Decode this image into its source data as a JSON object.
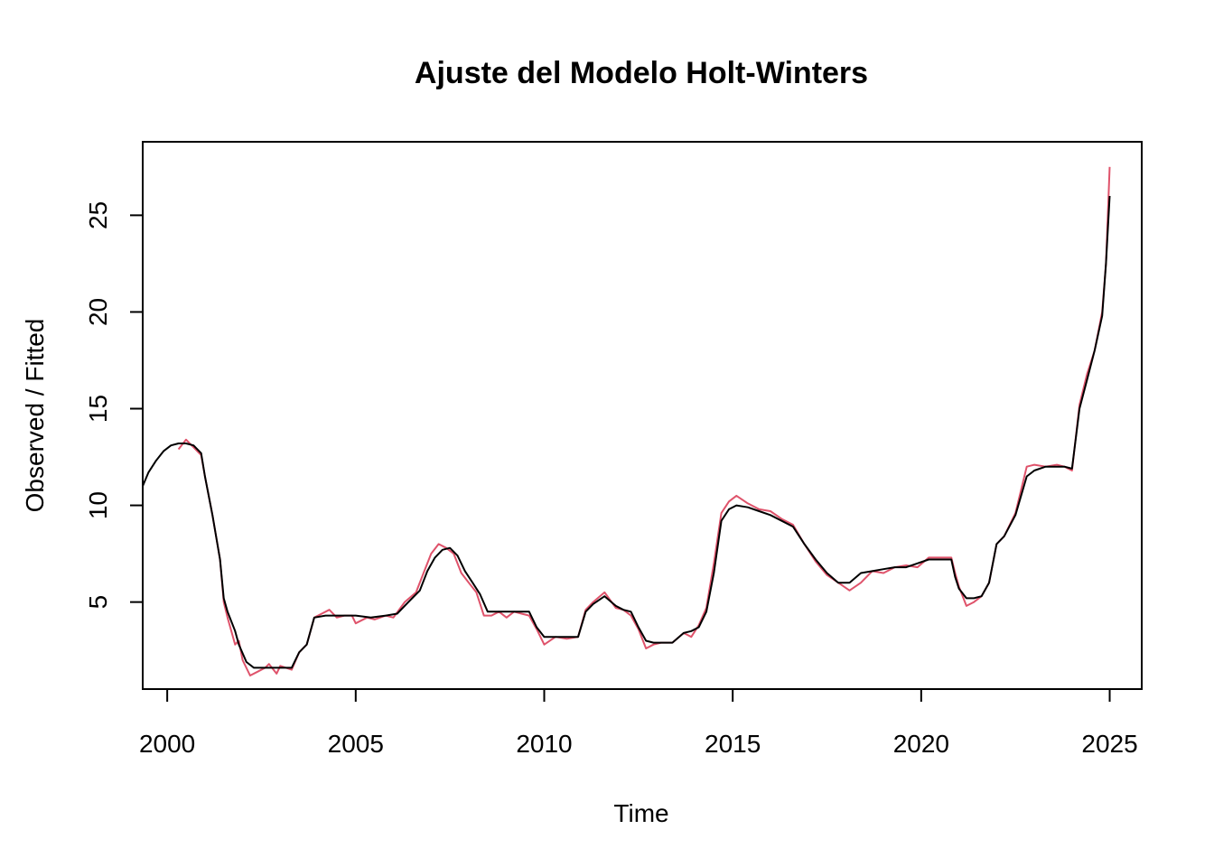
{
  "chart_data": {
    "type": "line",
    "title": "Ajuste del Modelo Holt-Winters",
    "xlabel": "Time",
    "ylabel": "Observed / Fitted",
    "xlim": [
      1999.35,
      2025.85
    ],
    "ylim": [
      0.5,
      28.8
    ],
    "x_ticks": [
      {
        "value": 2000,
        "label": "2000"
      },
      {
        "value": 2005,
        "label": "2005"
      },
      {
        "value": 2010,
        "label": "2010"
      },
      {
        "value": 2015,
        "label": "2015"
      },
      {
        "value": 2020,
        "label": "2020"
      },
      {
        "value": 2025,
        "label": "2025"
      }
    ],
    "y_ticks": [
      {
        "value": 5,
        "label": "5"
      },
      {
        "value": 10,
        "label": "10"
      },
      {
        "value": 15,
        "label": "15"
      },
      {
        "value": 20,
        "label": "20"
      },
      {
        "value": 25,
        "label": "25"
      }
    ],
    "grid": false,
    "legend": "none",
    "series": [
      {
        "color": "#DF536B",
        "x": [
          2000.3,
          2000.5,
          2000.7,
          2000.9,
          2001.0,
          2001.2,
          2001.4,
          2001.5,
          2001.6,
          2001.8,
          2001.9,
          2002.0,
          2002.2,
          2002.4,
          2002.6,
          2002.7,
          2002.9,
          2003.0,
          2003.3,
          2003.5,
          2003.7,
          2003.9,
          2004.1,
          2004.3,
          2004.5,
          2004.7,
          2004.9,
          2005.0,
          2005.3,
          2005.5,
          2005.8,
          2006.0,
          2006.3,
          2006.6,
          2006.8,
          2007.0,
          2007.2,
          2007.4,
          2007.6,
          2007.8,
          2008.0,
          2008.2,
          2008.4,
          2008.6,
          2008.8,
          2009.0,
          2009.2,
          2009.4,
          2009.6,
          2009.8,
          2010.0,
          2010.3,
          2010.6,
          2010.9,
          2011.1,
          2011.3,
          2011.6,
          2011.9,
          2012.1,
          2012.3,
          2012.5,
          2012.7,
          2012.9,
          2013.1,
          2013.4,
          2013.7,
          2013.9,
          2014.1,
          2014.3,
          2014.5,
          2014.7,
          2014.9,
          2015.1,
          2015.4,
          2015.7,
          2016.0,
          2016.3,
          2016.6,
          2016.9,
          2017.2,
          2017.5,
          2017.8,
          2018.1,
          2018.4,
          2018.7,
          2019.0,
          2019.3,
          2019.6,
          2019.9,
          2020.2,
          2020.5,
          2020.8,
          2020.9,
          2021.0,
          2021.2,
          2021.4,
          2021.6,
          2021.8,
          2022.0,
          2022.2,
          2022.5,
          2022.8,
          2023.0,
          2023.3,
          2023.6,
          2023.8,
          2024.0,
          2024.2,
          2024.4,
          2024.6,
          2024.8,
          2024.9,
          2025.0
        ],
        "y": [
          12.9,
          13.4,
          13.0,
          12.6,
          11.5,
          9.5,
          7.2,
          5.0,
          4.2,
          2.8,
          3.0,
          2.0,
          1.2,
          1.4,
          1.6,
          1.8,
          1.3,
          1.7,
          1.5,
          2.4,
          2.8,
          4.2,
          4.4,
          4.6,
          4.2,
          4.3,
          4.3,
          3.9,
          4.2,
          4.1,
          4.3,
          4.2,
          5.0,
          5.5,
          6.5,
          7.5,
          8.0,
          7.8,
          7.5,
          6.5,
          6.0,
          5.5,
          4.3,
          4.3,
          4.5,
          4.2,
          4.5,
          4.4,
          4.3,
          3.6,
          2.8,
          3.2,
          3.1,
          3.2,
          4.6,
          5.0,
          5.5,
          4.7,
          4.6,
          4.3,
          3.6,
          2.6,
          2.8,
          2.9,
          2.9,
          3.4,
          3.2,
          3.8,
          4.7,
          7.0,
          9.6,
          10.2,
          10.5,
          10.1,
          9.8,
          9.7,
          9.3,
          9.0,
          8.0,
          7.1,
          6.4,
          6.0,
          5.6,
          6.0,
          6.6,
          6.5,
          6.8,
          6.9,
          6.8,
          7.3,
          7.3,
          7.3,
          6.5,
          5.8,
          4.8,
          5.0,
          5.3,
          6.0,
          8.0,
          8.4,
          9.6,
          12.0,
          12.1,
          12.0,
          12.1,
          12.0,
          11.8,
          15.2,
          16.8,
          18.0,
          20.0,
          22.5,
          27.5
        ]
      },
      {
        "color": "#000000",
        "x": [
          1999.35,
          1999.5,
          1999.7,
          1999.9,
          2000.1,
          2000.3,
          2000.5,
          2000.7,
          2000.9,
          2001.0,
          2001.2,
          2001.4,
          2001.5,
          2001.6,
          2001.8,
          2001.9,
          2002.1,
          2002.3,
          2002.5,
          2002.7,
          2002.9,
          2003.1,
          2003.3,
          2003.5,
          2003.7,
          2003.9,
          2004.2,
          2004.6,
          2005.0,
          2005.4,
          2005.8,
          2006.1,
          2006.4,
          2006.7,
          2006.9,
          2007.1,
          2007.3,
          2007.5,
          2007.7,
          2007.9,
          2008.1,
          2008.3,
          2008.5,
          2008.8,
          2009.1,
          2009.4,
          2009.6,
          2009.8,
          2010.0,
          2010.3,
          2010.6,
          2010.9,
          2011.1,
          2011.3,
          2011.6,
          2011.9,
          2012.1,
          2012.3,
          2012.5,
          2012.7,
          2012.9,
          2013.1,
          2013.4,
          2013.7,
          2013.9,
          2014.1,
          2014.3,
          2014.5,
          2014.7,
          2014.9,
          2015.1,
          2015.4,
          2015.7,
          2016.0,
          2016.3,
          2016.6,
          2016.9,
          2017.2,
          2017.5,
          2017.8,
          2018.1,
          2018.4,
          2018.7,
          2019.0,
          2019.3,
          2019.6,
          2019.9,
          2020.2,
          2020.5,
          2020.8,
          2020.9,
          2021.0,
          2021.2,
          2021.4,
          2021.6,
          2021.8,
          2022.0,
          2022.2,
          2022.5,
          2022.8,
          2023.0,
          2023.3,
          2023.6,
          2023.8,
          2024.0,
          2024.2,
          2024.4,
          2024.6,
          2024.8,
          2024.9,
          2025.0
        ],
        "y": [
          11.0,
          11.7,
          12.3,
          12.8,
          13.1,
          13.2,
          13.2,
          13.1,
          12.7,
          11.5,
          9.5,
          7.2,
          5.2,
          4.5,
          3.5,
          2.8,
          1.9,
          1.6,
          1.6,
          1.6,
          1.6,
          1.6,
          1.6,
          2.4,
          2.8,
          4.2,
          4.3,
          4.3,
          4.3,
          4.2,
          4.3,
          4.4,
          5.0,
          5.6,
          6.6,
          7.3,
          7.7,
          7.8,
          7.4,
          6.6,
          6.0,
          5.4,
          4.5,
          4.5,
          4.5,
          4.5,
          4.5,
          3.7,
          3.2,
          3.2,
          3.2,
          3.2,
          4.5,
          4.9,
          5.3,
          4.8,
          4.6,
          4.5,
          3.7,
          3.0,
          2.9,
          2.9,
          2.9,
          3.4,
          3.5,
          3.7,
          4.5,
          6.5,
          9.2,
          9.8,
          10.0,
          9.9,
          9.7,
          9.5,
          9.2,
          8.9,
          8.0,
          7.2,
          6.5,
          6.0,
          6.0,
          6.5,
          6.6,
          6.7,
          6.8,
          6.8,
          7.0,
          7.2,
          7.2,
          7.2,
          6.3,
          5.7,
          5.2,
          5.2,
          5.3,
          6.0,
          8.0,
          8.4,
          9.5,
          11.5,
          11.8,
          12.0,
          12.0,
          12.0,
          11.9,
          15.0,
          16.5,
          18.0,
          19.8,
          22.5,
          26.0
        ]
      }
    ]
  }
}
